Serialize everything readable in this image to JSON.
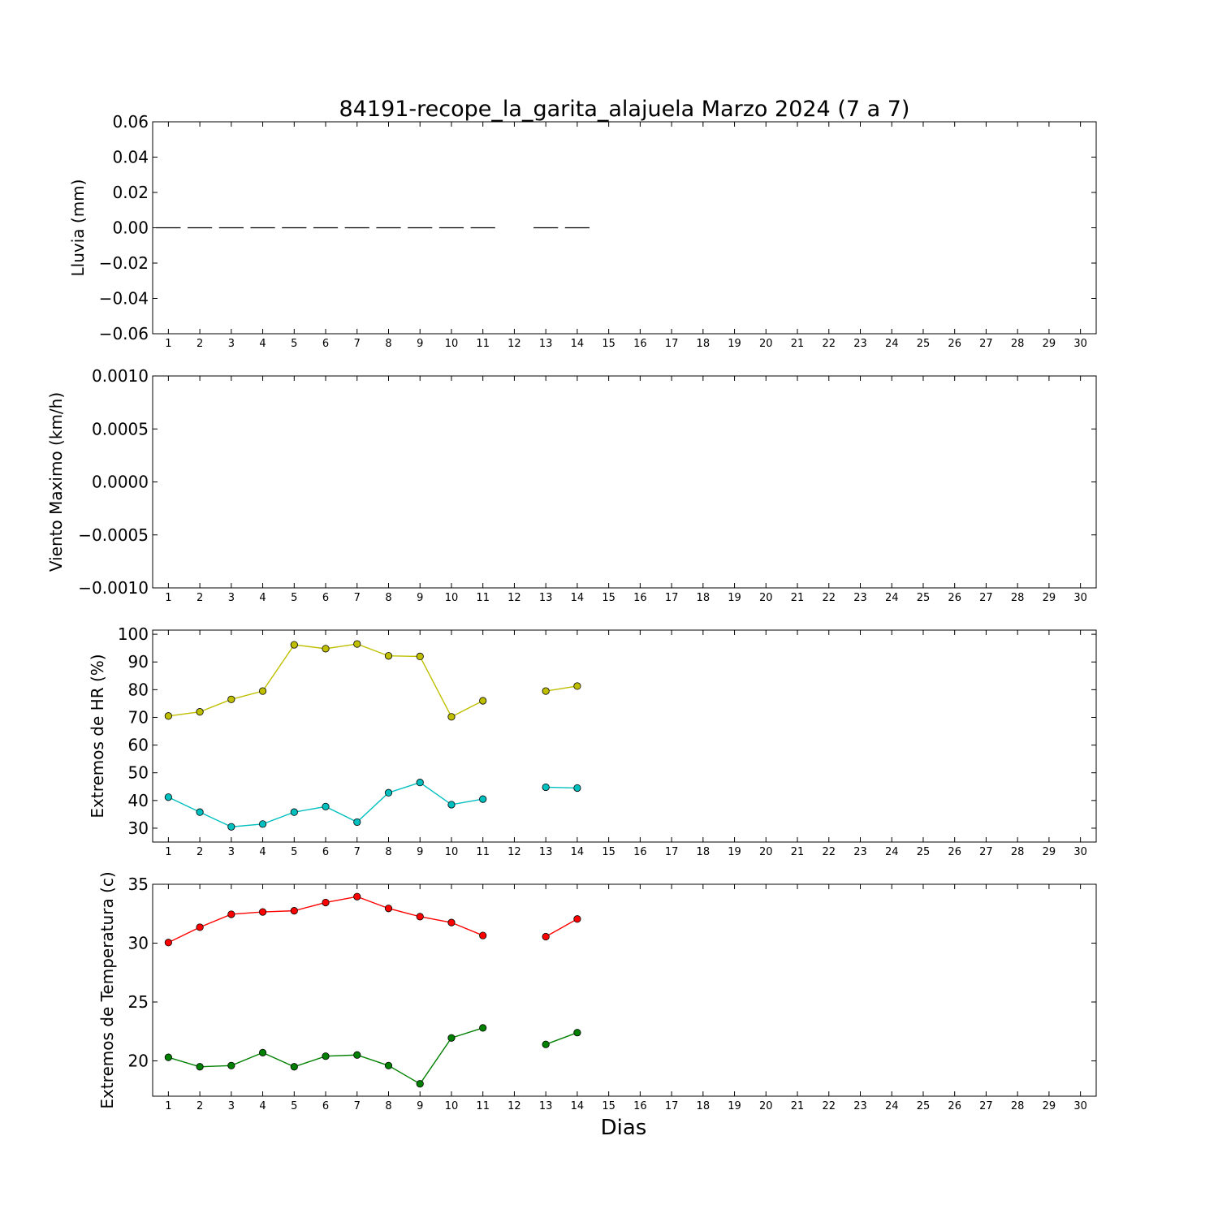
{
  "title": "84191-recope_la_garita_alajuela Marzo 2024  (7 a 7)",
  "xlabel": "Dias",
  "chart_data": [
    {
      "type": "bar",
      "ylabel": "Lluvia (mm)",
      "ylim": [
        -0.06,
        0.06
      ],
      "yticks": [
        "0.06",
        "0.04",
        "0.02",
        "0.00",
        "−0.02",
        "−0.04",
        "−0.06"
      ],
      "xlim": [
        0.5,
        30.5
      ],
      "xticks": [
        "1",
        "2",
        "3",
        "4",
        "5",
        "6",
        "7",
        "8",
        "9",
        "10",
        "11",
        "12",
        "13",
        "14",
        "15",
        "16",
        "17",
        "18",
        "19",
        "20",
        "21",
        "22",
        "23",
        "24",
        "25",
        "26",
        "27",
        "28",
        "29",
        "30"
      ],
      "x": [
        1,
        2,
        3,
        4,
        5,
        6,
        7,
        8,
        9,
        10,
        11,
        13,
        14
      ],
      "values": [
        0,
        0,
        0,
        0,
        0,
        0,
        0,
        0,
        0,
        0,
        0,
        0,
        0
      ],
      "color": "#000000"
    },
    {
      "type": "line",
      "ylabel": "Viento Maximo (km/h)",
      "ylim": [
        -0.001,
        0.001
      ],
      "yticks": [
        "0.0010",
        "0.0005",
        "0.0000",
        "−0.0005",
        "−0.0010"
      ],
      "xlim": [
        0.5,
        30.5
      ],
      "xticks": [
        "1",
        "2",
        "3",
        "4",
        "5",
        "6",
        "7",
        "8",
        "9",
        "10",
        "11",
        "12",
        "13",
        "14",
        "15",
        "16",
        "17",
        "18",
        "19",
        "20",
        "21",
        "22",
        "23",
        "24",
        "25",
        "26",
        "27",
        "28",
        "29",
        "30"
      ],
      "series": []
    },
    {
      "type": "line",
      "ylabel": "Extremos de HR (%)",
      "ylim": [
        25,
        101.5
      ],
      "yticks": [
        "100",
        "90",
        "80",
        "70",
        "60",
        "50",
        "40",
        "30"
      ],
      "xlim": [
        0.5,
        30.5
      ],
      "xticks": [
        "1",
        "2",
        "3",
        "4",
        "5",
        "6",
        "7",
        "8",
        "9",
        "10",
        "11",
        "12",
        "13",
        "14",
        "15",
        "16",
        "17",
        "18",
        "19",
        "20",
        "21",
        "22",
        "23",
        "24",
        "25",
        "26",
        "27",
        "28",
        "29",
        "30"
      ],
      "series": [
        {
          "color": "#bfbf00",
          "x": [
            1,
            2,
            3,
            4,
            5,
            6,
            7,
            8,
            9,
            10,
            11,
            null,
            13,
            14
          ],
          "values": [
            70.5,
            72,
            76.5,
            79.5,
            96.2,
            94.8,
            96.5,
            92.2,
            92,
            70.2,
            76,
            null,
            79.5,
            81.3
          ]
        },
        {
          "color": "#00bfbf",
          "x": [
            1,
            2,
            3,
            4,
            5,
            6,
            7,
            8,
            9,
            10,
            11,
            null,
            13,
            14
          ],
          "values": [
            41.2,
            35.8,
            30.5,
            31.5,
            35.8,
            37.8,
            32.2,
            42.8,
            46.5,
            38.5,
            40.5,
            null,
            44.8,
            44.5
          ]
        }
      ]
    },
    {
      "type": "line",
      "ylabel": "Extremos de Temperatura (c)",
      "ylim": [
        17,
        35
      ],
      "yticks": [
        "35",
        "30",
        "25",
        "20"
      ],
      "xlim": [
        0.5,
        30.5
      ],
      "xticks": [
        "1",
        "2",
        "3",
        "4",
        "5",
        "6",
        "7",
        "8",
        "9",
        "10",
        "11",
        "12",
        "13",
        "14",
        "15",
        "16",
        "17",
        "18",
        "19",
        "20",
        "21",
        "22",
        "23",
        "24",
        "25",
        "26",
        "27",
        "28",
        "29",
        "30"
      ],
      "series": [
        {
          "color": "#ff0000",
          "x": [
            1,
            2,
            3,
            4,
            5,
            6,
            7,
            8,
            9,
            10,
            11,
            null,
            13,
            14
          ],
          "values": [
            30.05,
            31.35,
            32.45,
            32.65,
            32.75,
            33.45,
            33.95,
            32.95,
            32.25,
            31.75,
            30.65,
            null,
            30.55,
            32.05
          ]
        },
        {
          "color": "#008000",
          "x": [
            1,
            2,
            3,
            4,
            5,
            6,
            7,
            8,
            9,
            10,
            11,
            null,
            13,
            14
          ],
          "values": [
            20.3,
            19.5,
            19.6,
            20.7,
            19.5,
            20.4,
            20.5,
            19.6,
            18.05,
            21.95,
            22.8,
            null,
            21.4,
            22.4
          ]
        }
      ]
    }
  ]
}
